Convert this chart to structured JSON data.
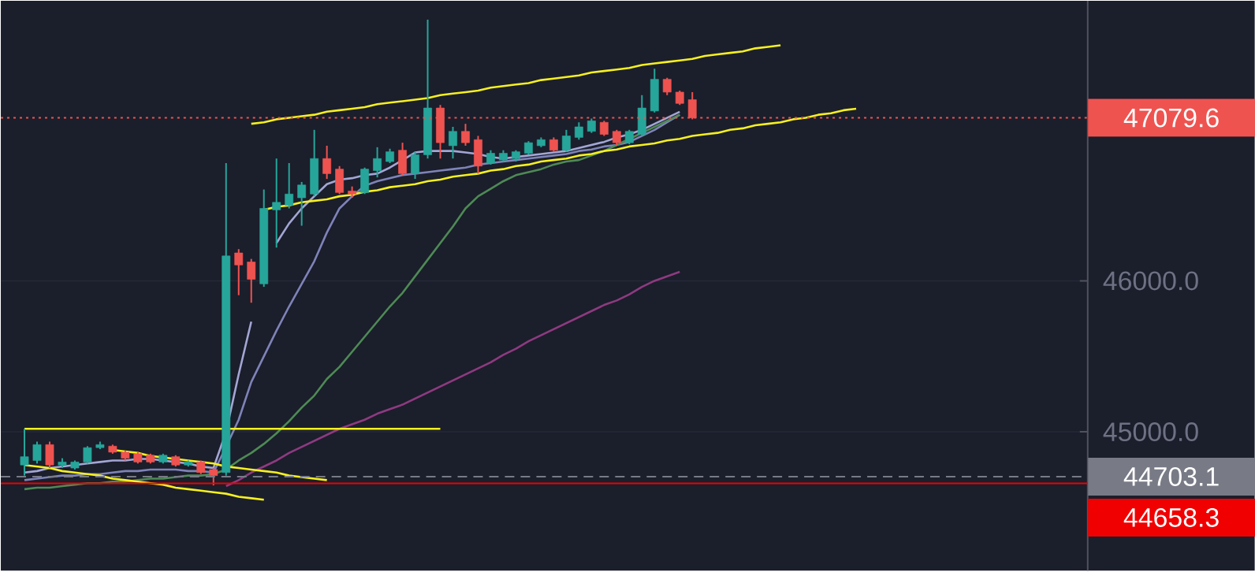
{
  "chart_data": {
    "type": "candlestick",
    "categories": [
      null,
      null,
      null,
      null,
      null,
      null,
      null,
      null,
      null,
      null,
      null,
      null,
      null,
      null,
      null,
      null,
      null,
      null,
      null,
      null,
      null,
      null,
      null,
      null,
      null,
      null,
      null,
      null,
      null,
      null,
      null,
      null,
      null,
      null,
      null,
      null,
      null,
      null,
      null,
      null,
      null,
      null,
      null,
      null,
      null,
      null,
      null,
      null,
      null,
      null,
      null,
      null,
      null,
      null,
      null,
      null,
      null,
      null,
      null,
      null,
      null,
      null,
      null,
      null,
      null,
      null,
      null
    ],
    "ohlc": [
      [
        44780,
        45020,
        44710,
        44835
      ],
      [
        44810,
        44935,
        44790,
        44915
      ],
      [
        44915,
        44935,
        44760,
        44780
      ],
      [
        44780,
        44825,
        44760,
        44800
      ],
      [
        44760,
        44810,
        44750,
        44800
      ],
      [
        44800,
        44905,
        44790,
        44895
      ],
      [
        44895,
        44935,
        44885,
        44915
      ],
      [
        44905,
        44915,
        44855,
        44865
      ],
      [
        44865,
        44875,
        44810,
        44825
      ],
      [
        44855,
        44865,
        44790,
        44800
      ],
      [
        44845,
        44855,
        44790,
        44800
      ],
      [
        44800,
        44855,
        44790,
        44845
      ],
      [
        44835,
        44845,
        44770,
        44780
      ],
      [
        44780,
        44810,
        44770,
        44800
      ],
      [
        44800,
        44810,
        44720,
        44730
      ],
      [
        44750,
        44760,
        44645,
        44710
      ],
      [
        44730,
        46780,
        44710,
        46165
      ],
      [
        46185,
        46210,
        45905,
        46105
      ],
      [
        46125,
        46145,
        45855,
        46010
      ],
      [
        45980,
        46605,
        45960,
        46480
      ],
      [
        46470,
        46810,
        46220,
        46520
      ],
      [
        46500,
        46780,
        46480,
        46575
      ],
      [
        46550,
        46655,
        46365,
        46635
      ],
      [
        46575,
        47000,
        46560,
        46810
      ],
      [
        46810,
        46895,
        46675,
        46710
      ],
      [
        46740,
        46760,
        46575,
        46585
      ],
      [
        46595,
        46625,
        46550,
        46575
      ],
      [
        46585,
        46750,
        46575,
        46740
      ],
      [
        46730,
        46885,
        46685,
        46810
      ],
      [
        46790,
        46875,
        46780,
        46855
      ],
      [
        46865,
        46915,
        46700,
        46710
      ],
      [
        46710,
        46855,
        46675,
        46835
      ],
      [
        46835,
        47730,
        46810,
        47145
      ],
      [
        47145,
        47165,
        46810,
        46915
      ],
      [
        46895,
        47020,
        46810,
        46990
      ],
      [
        46990,
        47040,
        46895,
        46915
      ],
      [
        46935,
        46960,
        46710,
        46760
      ],
      [
        46780,
        46865,
        46770,
        46845
      ],
      [
        46800,
        46865,
        46790,
        46845
      ],
      [
        46810,
        46865,
        46790,
        46855
      ],
      [
        46845,
        46925,
        46835,
        46915
      ],
      [
        46895,
        46950,
        46885,
        46935
      ],
      [
        46935,
        46950,
        46855,
        46865
      ],
      [
        46865,
        47000,
        46855,
        46960
      ],
      [
        46950,
        47050,
        46935,
        47020
      ],
      [
        46990,
        47075,
        46980,
        47060
      ],
      [
        47050,
        47060,
        46960,
        46970
      ],
      [
        46990,
        47000,
        46895,
        46915
      ],
      [
        46915,
        47000,
        46905,
        46990
      ],
      [
        46970,
        47230,
        46960,
        47145
      ],
      [
        47125,
        47405,
        47115,
        47335
      ],
      [
        47335,
        47345,
        47230,
        47250
      ],
      [
        47250,
        47260,
        47165,
        47175
      ],
      [
        47200,
        47250,
        47070,
        47079.6
      ],
      null,
      null,
      null,
      null,
      null,
      null,
      null,
      null,
      null,
      null,
      null,
      null,
      null
    ],
    "ylim": [
      44080,
      47855
    ],
    "yticks": [
      {
        "value": 45000,
        "label": "45000.0"
      },
      {
        "value": 46000,
        "label": "46000.0"
      }
    ],
    "tick_labels": "y",
    "grid": "y",
    "ref_lines": [
      {
        "axis": "y",
        "value": 47079.6,
        "label": "47079.6",
        "color": "#ef5350",
        "line_style": "dotted"
      },
      {
        "axis": "y",
        "value": 44703.1,
        "label": "44703.1",
        "color": "#787b86",
        "line_style": "dashed"
      },
      {
        "axis": "y",
        "value": 44658.3,
        "label": "44658.3",
        "color": "#f00000",
        "line_style": "solid"
      }
    ],
    "series": [
      {
        "type": "line",
        "color": "#a3a6d4",
        "values": [
          44730,
          44740,
          44760,
          44770,
          44780,
          44790,
          44800,
          44810,
          44810,
          44820,
          44820,
          44810,
          44800,
          44790,
          44770,
          44760,
          45000,
          45380,
          45730,
          null,
          46250,
          46380,
          46480,
          46560,
          46640,
          46670,
          46680,
          46700,
          46710,
          46750,
          46800,
          46850,
          46860,
          46860,
          46860,
          46850,
          46840,
          46820,
          46810,
          46820,
          46830,
          46840,
          46850,
          46860,
          46880,
          46900,
          46920,
          46950,
          46970,
          47000,
          47040,
          47080,
          47120,
          null,
          null,
          null,
          null,
          null,
          null,
          null,
          null,
          null,
          null,
          null,
          null,
          null,
          null
        ]
      },
      {
        "type": "line",
        "color": "#7e83b8",
        "values": [
          44680,
          44690,
          44700,
          44710,
          44710,
          44720,
          44720,
          44730,
          44740,
          44740,
          44750,
          44750,
          44750,
          44740,
          44740,
          44730,
          44900,
          45080,
          45330,
          45500,
          45670,
          45830,
          45980,
          46130,
          46320,
          46480,
          46560,
          46630,
          46660,
          46680,
          46700,
          46710,
          46720,
          46730,
          46740,
          46750,
          46770,
          46780,
          46790,
          46800,
          46810,
          46820,
          46830,
          46840,
          46860,
          46870,
          46890,
          46900,
          46920,
          46960,
          47000,
          47050,
          47100,
          null,
          null,
          null,
          null,
          null,
          null,
          null,
          null,
          null,
          null,
          null,
          null,
          null,
          null
        ]
      },
      {
        "type": "line",
        "color": "#4e8a55",
        "values": [
          44620,
          44630,
          44630,
          44640,
          44650,
          44660,
          44660,
          44670,
          44670,
          44680,
          44690,
          44690,
          44700,
          44710,
          44710,
          44720,
          44750,
          44810,
          44860,
          44920,
          44990,
          45070,
          45160,
          45240,
          45350,
          45430,
          45530,
          45630,
          45730,
          45830,
          45920,
          46030,
          46140,
          46250,
          46360,
          46480,
          46560,
          46610,
          46660,
          46700,
          46720,
          46740,
          46770,
          46790,
          46800,
          46830,
          46860,
          46900,
          46940,
          46980,
          47020,
          47060,
          47100,
          null,
          null,
          null,
          null,
          null,
          null,
          null,
          null,
          null,
          null,
          null,
          null,
          null,
          null
        ]
      },
      {
        "type": "line",
        "color": "#8e3a80",
        "values": [
          null,
          null,
          null,
          null,
          null,
          null,
          null,
          null,
          null,
          null,
          null,
          null,
          null,
          null,
          null,
          null,
          44640,
          44680,
          44730,
          44770,
          44810,
          44860,
          44900,
          44940,
          44980,
          45020,
          45050,
          45080,
          45120,
          45150,
          45180,
          45220,
          45260,
          45300,
          45340,
          45380,
          45420,
          45460,
          45510,
          45550,
          45600,
          45640,
          45680,
          45720,
          45760,
          45800,
          45840,
          45870,
          45910,
          45960,
          46000,
          46030,
          46060,
          null,
          null,
          null,
          null,
          null,
          null,
          null,
          null,
          null,
          null,
          null,
          null,
          null,
          null
        ]
      },
      {
        "type": "line",
        "color": "#f5f020",
        "values": [
          45020,
          45020,
          45020,
          45020,
          45020,
          45020,
          45020,
          45020,
          45020,
          45020,
          45020,
          45020,
          45020,
          45020,
          45020,
          45020,
          45020,
          45020,
          45020,
          45020,
          45020,
          45020,
          45020,
          45020,
          45020,
          45020,
          45020,
          45020,
          45020,
          45020,
          45020,
          45020,
          45020,
          45020,
          null,
          null,
          null,
          null,
          null,
          null,
          null,
          null,
          null,
          null,
          null,
          null,
          null,
          null,
          null,
          null,
          null,
          null,
          null,
          null,
          null,
          null,
          null,
          null,
          null,
          null,
          null,
          null,
          null,
          null,
          null,
          null,
          null
        ]
      },
      {
        "type": "line",
        "color": "#f5f020",
        "values": [
          null,
          null,
          null,
          null,
          null,
          null,
          null,
          null,
          null,
          null,
          null,
          null,
          null,
          null,
          null,
          null,
          null,
          null,
          47040,
          47050,
          47070,
          47080,
          47090,
          47100,
          47120,
          47130,
          47140,
          47150,
          47170,
          47180,
          47190,
          47200,
          47210,
          47230,
          47240,
          47250,
          47260,
          47280,
          47290,
          47300,
          47310,
          47330,
          47340,
          47350,
          47360,
          47380,
          47390,
          47400,
          47410,
          47430,
          47440,
          47450,
          47460,
          47470,
          47490,
          47500,
          47510,
          47520,
          47540,
          47550,
          47560,
          null,
          null,
          null,
          null,
          null,
          null
        ]
      },
      {
        "type": "line",
        "color": "#f5f020",
        "values": [
          null,
          null,
          null,
          null,
          null,
          null,
          null,
          null,
          null,
          null,
          null,
          null,
          null,
          null,
          null,
          null,
          null,
          null,
          null,
          46470,
          46490,
          46500,
          46520,
          46530,
          46540,
          46560,
          46570,
          46590,
          46600,
          46620,
          46630,
          46640,
          46660,
          46670,
          46690,
          46700,
          46710,
          46730,
          46740,
          46760,
          46770,
          46790,
          46800,
          46810,
          46830,
          46840,
          46860,
          46870,
          46890,
          46900,
          46910,
          46930,
          46940,
          46960,
          46970,
          46980,
          47000,
          47010,
          47030,
          47040,
          47050,
          47070,
          47080,
          47100,
          47110,
          47130,
          47140
        ]
      },
      {
        "type": "line",
        "color": "#f5f020",
        "values": [
          null,
          null,
          null,
          null,
          null,
          null,
          null,
          44880,
          44870,
          44860,
          44840,
          44830,
          44820,
          44810,
          44800,
          44790,
          44770,
          44760,
          44750,
          44740,
          44730,
          44710,
          44700,
          44690,
          44680,
          null,
          null,
          null,
          null,
          null,
          null,
          null,
          null,
          null,
          null,
          null,
          null,
          null,
          null,
          null,
          null,
          null,
          null,
          null,
          null,
          null,
          null,
          null,
          null,
          null,
          null,
          null,
          null,
          null,
          null,
          null,
          null,
          null,
          null,
          null,
          null,
          null,
          null,
          null,
          null,
          null,
          null
        ]
      },
      {
        "type": "line",
        "color": "#f5f020",
        "values": [
          44780,
          44770,
          44760,
          44740,
          44730,
          44720,
          44710,
          44690,
          44680,
          44670,
          44660,
          44650,
          44630,
          44620,
          44610,
          44600,
          44590,
          44570,
          44560,
          44550,
          null,
          null,
          null,
          null,
          null,
          null,
          null,
          null,
          null,
          null,
          null,
          null,
          null,
          null,
          null,
          null,
          null,
          null,
          null,
          null,
          null,
          null,
          null,
          null,
          null,
          null,
          null,
          null,
          null,
          null,
          null,
          null,
          null,
          null,
          null,
          null,
          null,
          null,
          null,
          null,
          null,
          null,
          null,
          null,
          null,
          null,
          null
        ]
      }
    ]
  }
}
